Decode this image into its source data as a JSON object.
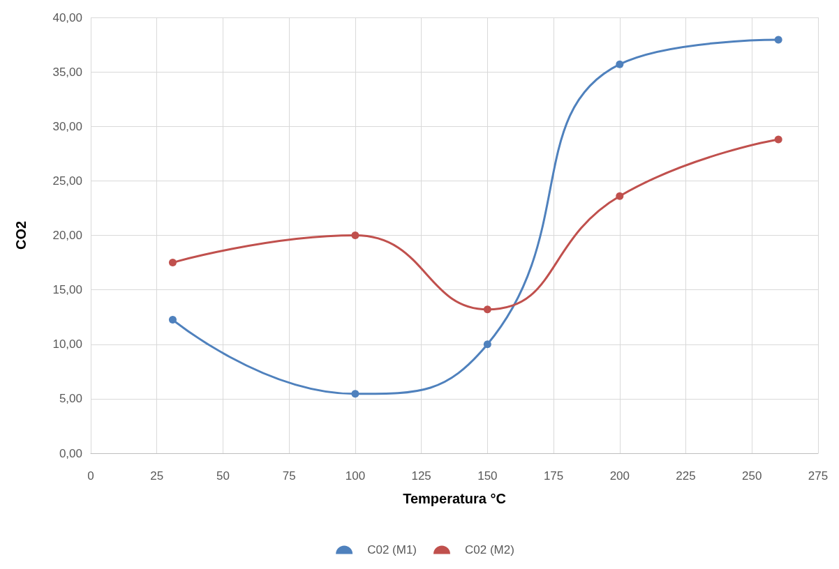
{
  "chart_data": {
    "type": "line",
    "xlabel": "Temperatura °C",
    "ylabel": "CO2",
    "x": [
      31,
      100,
      150,
      200,
      260
    ],
    "series": [
      {
        "name": "C02 (M1)",
        "color": "#4f81bd",
        "values": [
          12.25,
          5.45,
          10,
          35.7,
          37.95
        ]
      },
      {
        "name": "C02 (M2)",
        "color": "#c0504d",
        "values": [
          17.5,
          20,
          13.2,
          23.6,
          28.8
        ]
      }
    ],
    "xlim": [
      0,
      275
    ],
    "xticks": [
      0,
      25,
      50,
      75,
      100,
      125,
      150,
      175,
      200,
      225,
      250,
      275
    ],
    "ylim": [
      0,
      40
    ],
    "yticks": [
      {
        "value": 0,
        "label": "0,00"
      },
      {
        "value": 5,
        "label": "5,00"
      },
      {
        "value": 10,
        "label": "10,00"
      },
      {
        "value": 15,
        "label": "15,00"
      },
      {
        "value": 20,
        "label": "20,00"
      },
      {
        "value": 25,
        "label": "25,00"
      },
      {
        "value": 30,
        "label": "30,00"
      },
      {
        "value": 35,
        "label": "35,00"
      },
      {
        "value": 40,
        "label": "40,00"
      }
    ],
    "grid": true,
    "legend": "bottom",
    "marker": "circle",
    "line_style": "solid"
  }
}
